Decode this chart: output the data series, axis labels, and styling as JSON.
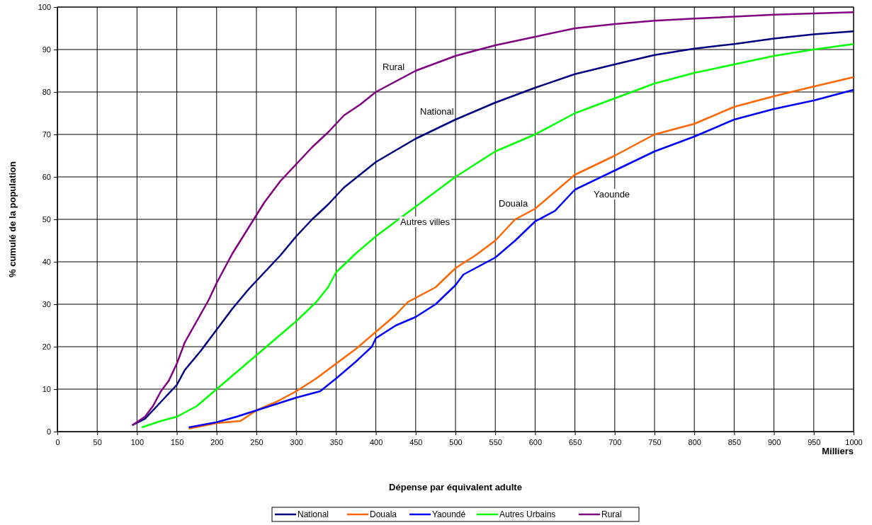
{
  "chart_data": {
    "type": "line",
    "xlabel": "Dépense par équivalent adulte",
    "ylabel": "% cumulé de la population",
    "xlim": [
      0,
      1000
    ],
    "xticks": [
      0,
      50,
      100,
      150,
      200,
      250,
      300,
      350,
      400,
      450,
      500,
      550,
      600,
      650,
      700,
      750,
      800,
      850,
      900,
      950,
      1000
    ],
    "ylim": [
      0,
      100
    ],
    "yticks": [
      0,
      10,
      20,
      30,
      40,
      50,
      60,
      70,
      80,
      90,
      100
    ],
    "grid": true,
    "legend": "bottom",
    "marker": "none",
    "line_style": "solid",
    "series": [
      {
        "name": "National",
        "color": "#000080",
        "x": [
          94,
          110,
          130,
          150,
          160,
          180,
          200,
          220,
          240,
          260,
          280,
          300,
          320,
          340,
          360,
          380,
          400,
          450,
          500,
          550,
          600,
          650,
          700,
          750,
          800,
          850,
          900,
          950,
          1000
        ],
        "values": [
          1.5,
          3,
          7,
          11,
          14.5,
          19,
          24,
          29,
          33.5,
          37.5,
          41.5,
          46,
          50,
          53.5,
          57.5,
          60.5,
          63.5,
          69,
          73.5,
          77.5,
          81,
          84.2,
          86.5,
          88.7,
          90.2,
          91.3,
          92.6,
          93.6,
          94.3
        ]
      },
      {
        "name": "Douala",
        "color": "#ff6600",
        "x": [
          165,
          200,
          230,
          250,
          275,
          300,
          325,
          350,
          375,
          400,
          425,
          440,
          475,
          500,
          525,
          550,
          575,
          600,
          625,
          650,
          700,
          750,
          800,
          850,
          900,
          950,
          1000
        ],
        "values": [
          0.7,
          2,
          2.5,
          5,
          7,
          9.5,
          12.5,
          16,
          19.5,
          23.5,
          27.5,
          30.5,
          34,
          38.5,
          41.5,
          45,
          50,
          52.5,
          56.5,
          60.5,
          65,
          70,
          72.5,
          76.5,
          79,
          81.3,
          83.5
        ]
      },
      {
        "name": "Yaoundé",
        "color": "#0000ff",
        "x": [
          165,
          200,
          225,
          250,
          275,
          300,
          330,
          350,
          375,
          395,
          400,
          425,
          450,
          475,
          500,
          510,
          550,
          575,
          600,
          625,
          650,
          700,
          750,
          800,
          850,
          900,
          950,
          1000
        ],
        "values": [
          1,
          2.2,
          3.5,
          5,
          6.5,
          8,
          9.5,
          12.5,
          16.5,
          20,
          22,
          25,
          27,
          30,
          34.5,
          37,
          41,
          45,
          49.5,
          52,
          57,
          61.5,
          66,
          69.5,
          73.5,
          76,
          78,
          80.5
        ]
      },
      {
        "name": "Autres Urbains",
        "color": "#00ff00",
        "x": [
          106,
          130,
          150,
          175,
          200,
          225,
          250,
          275,
          300,
          325,
          340,
          350,
          375,
          400,
          450,
          500,
          550,
          600,
          650,
          700,
          750,
          800,
          850,
          900,
          950,
          1000
        ],
        "values": [
          1,
          2.5,
          3.5,
          6,
          10,
          14,
          18,
          22,
          26,
          30.5,
          34,
          37.5,
          42,
          46,
          53,
          60,
          66,
          70,
          75,
          78.5,
          82,
          84.5,
          86.5,
          88.5,
          90,
          91.3
        ]
      },
      {
        "name": "Rural",
        "color": "#800080",
        "x": [
          94,
          110,
          120,
          130,
          140,
          150,
          160,
          175,
          190,
          200,
          220,
          240,
          260,
          280,
          300,
          320,
          340,
          360,
          380,
          400,
          450,
          500,
          550,
          600,
          650,
          700,
          750,
          800,
          900,
          1000
        ],
        "values": [
          1.5,
          3.5,
          6,
          9.5,
          12,
          16,
          21,
          26,
          31,
          35,
          42,
          48,
          54,
          59,
          63,
          67,
          70.5,
          74.5,
          77,
          80,
          85,
          88.5,
          91,
          93,
          95,
          96,
          96.8,
          97.3,
          98.2,
          98.8
        ]
      }
    ],
    "annotations": [
      "Rural",
      "National",
      "Douala",
      "Autres villes",
      "Yaounde",
      "Milliers"
    ]
  }
}
